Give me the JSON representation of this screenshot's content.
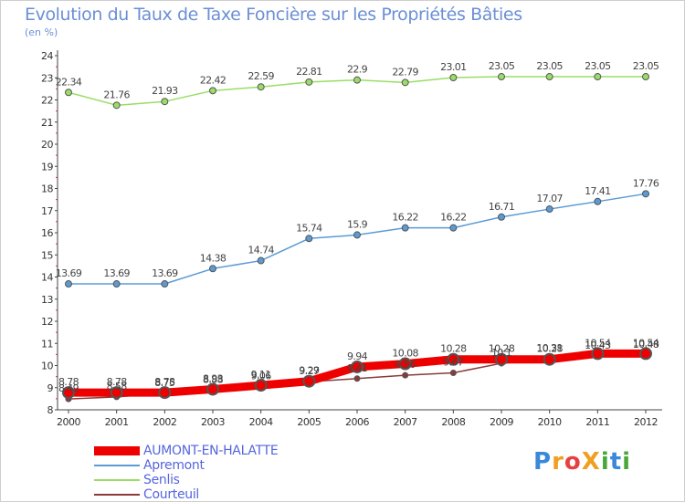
{
  "title": "Evolution du Taux de Taxe Foncière sur les Propriétés Bâties",
  "subtitle": "(en %)",
  "logo": {
    "text": "ProXiti",
    "letters": [
      {
        "ch": "P",
        "color": "#3a88d8"
      },
      {
        "ch": "r",
        "color": "#f0a020"
      },
      {
        "ch": "o",
        "color": "#e84040"
      },
      {
        "ch": "X",
        "color": "#f0a020"
      },
      {
        "ch": "i",
        "color": "#4aa83a"
      },
      {
        "ch": "t",
        "color": "#3a88d8"
      },
      {
        "ch": "i",
        "color": "#4aa83a"
      }
    ]
  },
  "chart_data": {
    "type": "line",
    "title": "Evolution du Taux de Taxe Foncière sur les Propriétés Bâties",
    "subtitle": "(en %)",
    "xlabel": "",
    "ylabel": "",
    "x": [
      "2000",
      "2001",
      "2002",
      "2003",
      "2004",
      "2005",
      "2006",
      "2007",
      "2008",
      "2009",
      "2010",
      "2011",
      "2012"
    ],
    "ylim": [
      8,
      24
    ],
    "yticks": [
      8,
      9,
      10,
      11,
      12,
      13,
      14,
      15,
      16,
      17,
      18,
      19,
      20,
      21,
      22,
      23,
      24
    ],
    "grid": false,
    "legend_position": "bottom-left",
    "series": [
      {
        "name": "AUMONT-EN-HALATTE",
        "color": "#ee0000",
        "values": [
          8.78,
          8.78,
          8.78,
          8.93,
          9.11,
          9.29,
          9.94,
          10.08,
          10.28,
          10.28,
          10.28,
          10.54,
          10.54
        ],
        "labels": [
          "8.78",
          "8.78",
          "8.78",
          "8.93",
          "9.11",
          "9.29",
          "9.94",
          "10.08",
          "10.28",
          "10.28",
          "10.28",
          "10.54",
          "10.54"
        ]
      },
      {
        "name": "Apremont",
        "color": "#5b9bd5",
        "values": [
          13.69,
          13.69,
          13.69,
          14.38,
          14.74,
          15.74,
          15.9,
          16.22,
          16.22,
          16.71,
          17.07,
          17.41,
          17.76
        ],
        "labels": [
          "13.69",
          "13.69",
          "13.69",
          "14.38",
          "14.74",
          "15.74",
          "15.9",
          "16.22",
          "16.22",
          "16.71",
          "17.07",
          "17.41",
          "17.76"
        ]
      },
      {
        "name": "Senlis",
        "color": "#99dd66",
        "values": [
          22.34,
          21.76,
          21.93,
          22.42,
          22.59,
          22.81,
          22.9,
          22.79,
          23.01,
          23.05,
          23.05,
          23.05,
          23.05
        ],
        "labels": [
          "22.34",
          "21.76",
          "21.93",
          "22.42",
          "22.59",
          "22.81",
          "22.9",
          "22.79",
          "23.01",
          "23.05",
          "23.05",
          "23.05",
          "23.05"
        ]
      },
      {
        "name": "Courteuil",
        "color": "#8b3a3a",
        "values": [
          8.49,
          8.58,
          8.75,
          8.88,
          9.06,
          9.27,
          9.41,
          9.56,
          9.67,
          10.1,
          10.31,
          10.43,
          10.48
        ],
        "labels": [
          "8.49",
          "8.58",
          "8.75",
          "8.88",
          "9.06",
          "9.27",
          "9.41",
          "9.56",
          "9.67",
          "10.1",
          "10.31",
          "10.43",
          "10.48"
        ]
      }
    ]
  }
}
